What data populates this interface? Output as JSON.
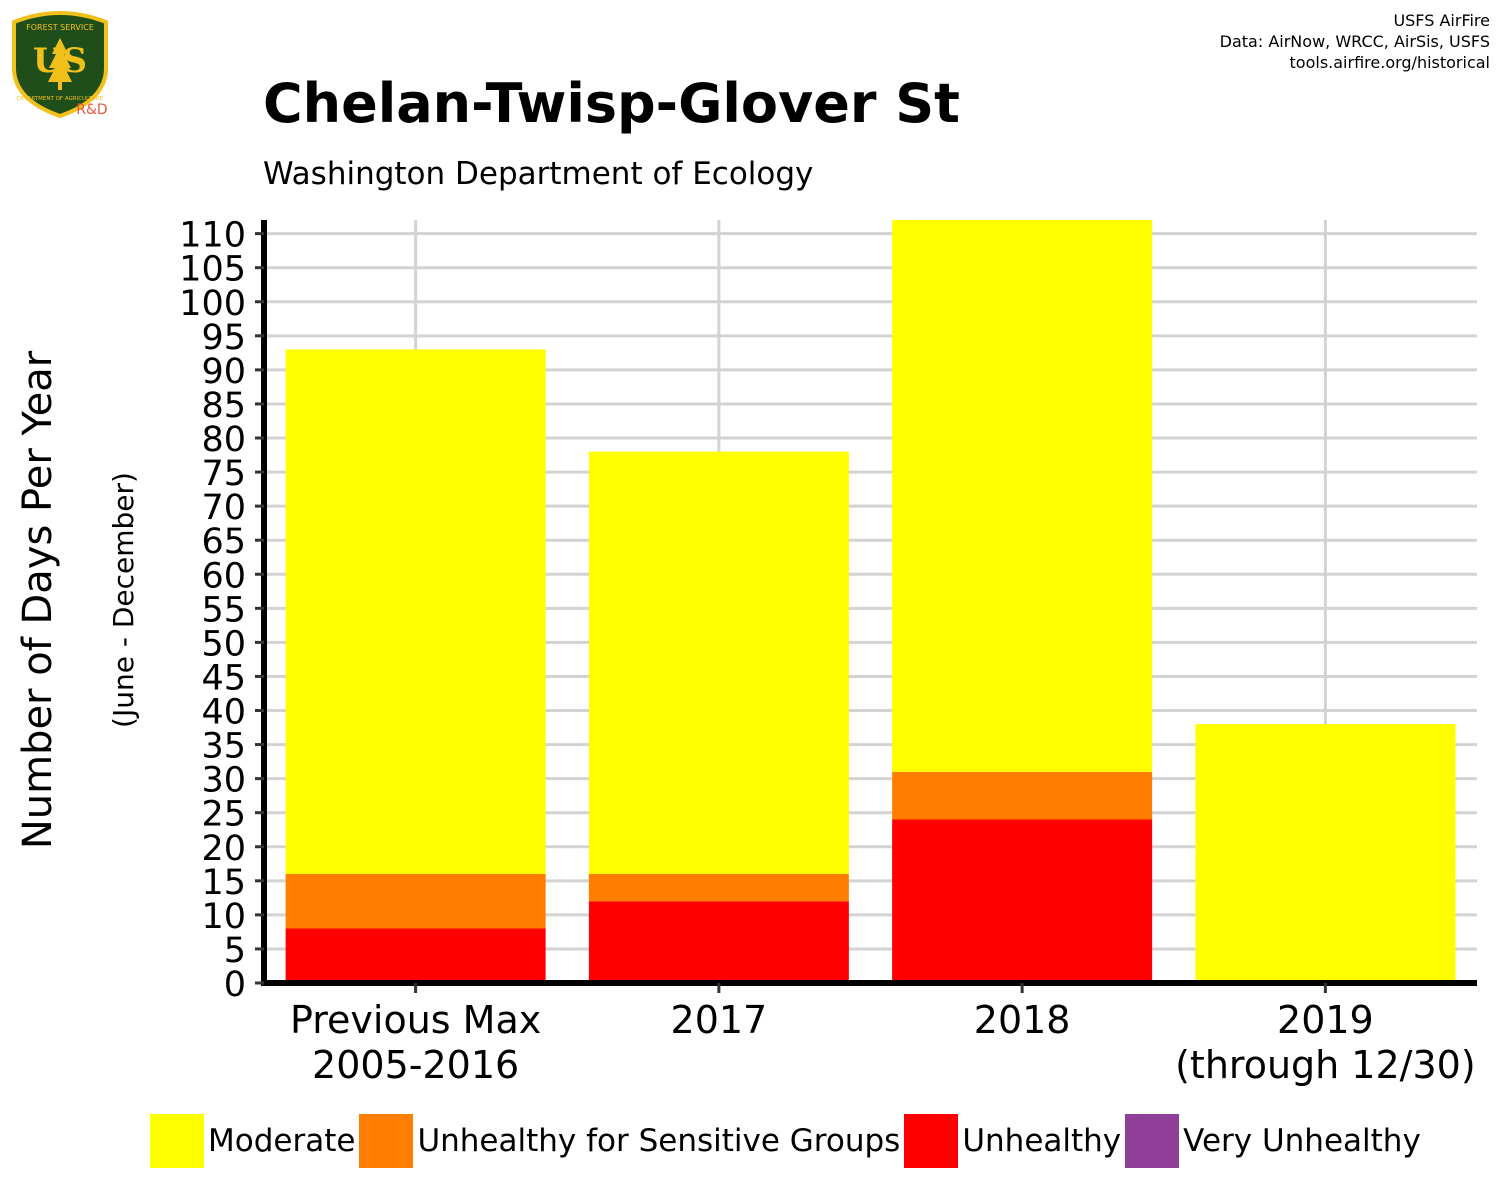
{
  "header": {
    "title": "Chelan-Twisp-Glover St",
    "subtitle": "Washington Department of Ecology",
    "credits": [
      "USFS AirFire",
      "Data: AirNow, WRCC, AirSis, USFS",
      "tools.airfire.org/historical"
    ]
  },
  "logo": {
    "top_text": "FOREST SERVICE",
    "monogram": "US",
    "bottom_text": "DEPARTMENT OF AGRICULTURE",
    "badge": "R&D"
  },
  "colors": {
    "Moderate": "#FFFF00",
    "Unhealthy for Sensitive Groups": "#FF7E00",
    "Unhealthy": "#FF0000",
    "Very Unhealthy": "#8F3F97",
    "grid": "#D3D3D3",
    "logo_shield": "#1F4E1B",
    "logo_trim": "#F2C01A",
    "badge_text": "#E8553C"
  },
  "chart_data": {
    "type": "bar",
    "stacked": true,
    "title": "Chelan-Twisp-Glover St",
    "subtitle": "Washington Department of Ecology",
    "ylabel": "Number of Days Per Year",
    "ylabel_sub": "(June - December)",
    "xlabel": "",
    "ylim": [
      0,
      112
    ],
    "yticks": [
      0,
      5,
      10,
      15,
      20,
      25,
      30,
      35,
      40,
      45,
      50,
      55,
      60,
      65,
      70,
      75,
      80,
      85,
      90,
      95,
      100,
      105,
      110
    ],
    "grid": true,
    "legend_position": "bottom",
    "categories": [
      "Previous Max\n2005-2016",
      "2017",
      "2018",
      "2019\n(through 12/30)"
    ],
    "series": [
      {
        "name": "Very Unhealthy",
        "values": [
          0,
          0,
          0.4,
          0
        ]
      },
      {
        "name": "Unhealthy",
        "values": [
          8,
          12,
          23.6,
          0
        ]
      },
      {
        "name": "Unhealthy for Sensitive Groups",
        "values": [
          8,
          4,
          7,
          0
        ]
      },
      {
        "name": "Moderate",
        "values": [
          77,
          62,
          81,
          38
        ]
      }
    ]
  },
  "legend": [
    "Moderate",
    "Unhealthy for Sensitive Groups",
    "Unhealthy",
    "Very Unhealthy"
  ]
}
